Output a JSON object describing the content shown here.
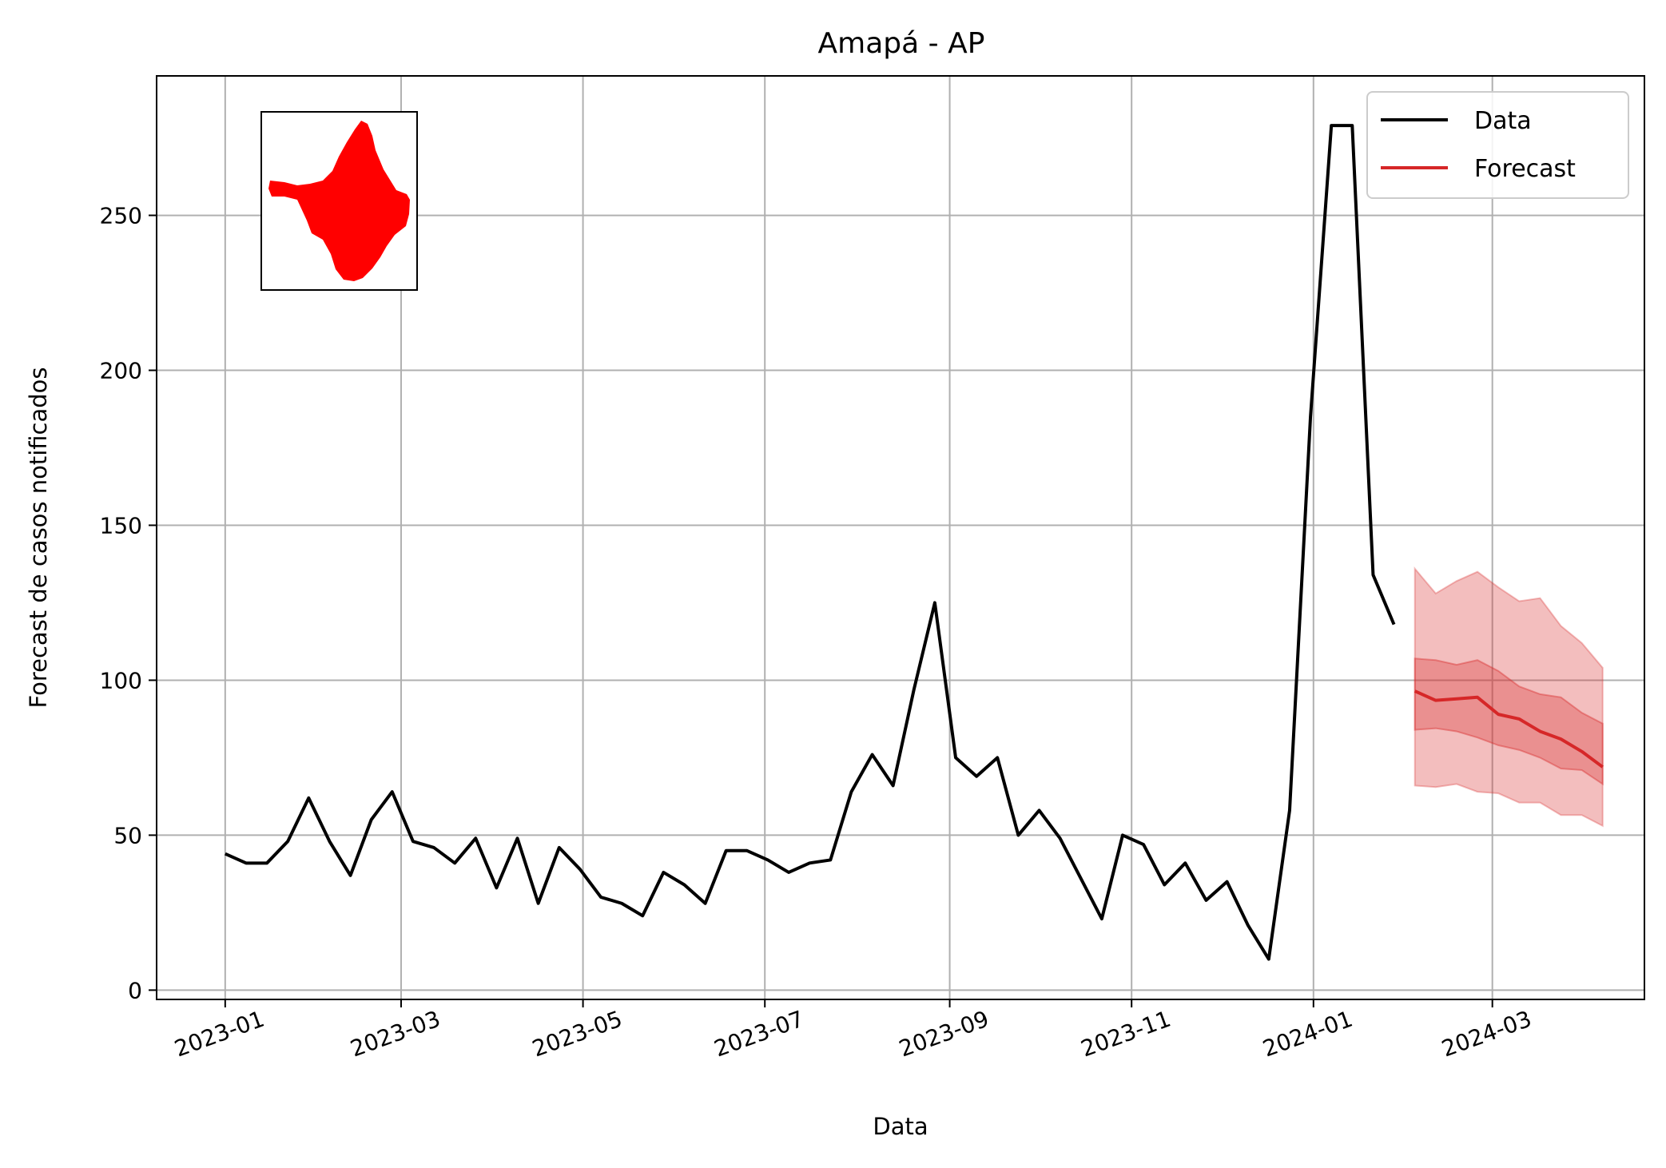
{
  "chart_data": {
    "type": "line",
    "title": "Amapá - AP",
    "xlabel": "Data",
    "ylabel": "Forecast de casos notificados",
    "x_range": [
      "2022-12-09",
      "2024-04-21"
    ],
    "ylim": [
      -3,
      295
    ],
    "grid": true,
    "legend_position": "top-right",
    "x_ticks": [
      "2023-01",
      "2023-03",
      "2023-05",
      "2023-07",
      "2023-09",
      "2023-11",
      "2024-01",
      "2024-03"
    ],
    "x_tick_dates": [
      "2023-01-01",
      "2023-03-01",
      "2023-05-01",
      "2023-07-01",
      "2023-09-01",
      "2023-11-01",
      "2024-01-01",
      "2024-03-01"
    ],
    "y_ticks": [
      0,
      50,
      100,
      150,
      200,
      250
    ],
    "series": [
      {
        "name": "Data",
        "color": "#000000",
        "dates": [
          "2023-01-01",
          "2023-01-08",
          "2023-01-15",
          "2023-01-22",
          "2023-01-29",
          "2023-02-05",
          "2023-02-12",
          "2023-02-19",
          "2023-02-26",
          "2023-03-05",
          "2023-03-12",
          "2023-03-19",
          "2023-03-26",
          "2023-04-02",
          "2023-04-09",
          "2023-04-16",
          "2023-04-23",
          "2023-04-30",
          "2023-05-07",
          "2023-05-14",
          "2023-05-21",
          "2023-05-28",
          "2023-06-04",
          "2023-06-11",
          "2023-06-18",
          "2023-06-25",
          "2023-07-02",
          "2023-07-09",
          "2023-07-16",
          "2023-07-23",
          "2023-07-30",
          "2023-08-06",
          "2023-08-13",
          "2023-08-20",
          "2023-08-27",
          "2023-09-03",
          "2023-09-10",
          "2023-09-17",
          "2023-09-24",
          "2023-10-01",
          "2023-10-08",
          "2023-10-15",
          "2023-10-22",
          "2023-10-29",
          "2023-11-05",
          "2023-11-12",
          "2023-11-19",
          "2023-11-26",
          "2023-12-03",
          "2023-12-10",
          "2023-12-17",
          "2023-12-24",
          "2023-12-31",
          "2024-01-07",
          "2024-01-14",
          "2024-01-21",
          "2024-01-28"
        ],
        "values": [
          44,
          41,
          41,
          48,
          62,
          48,
          37,
          55,
          64,
          48,
          46,
          41,
          49,
          33,
          49,
          28,
          46,
          39,
          30,
          28,
          24,
          38,
          34,
          28,
          45,
          45,
          42,
          38,
          41,
          42,
          64,
          76,
          66,
          97,
          125,
          75,
          69,
          75,
          50,
          58,
          49,
          36,
          23,
          50,
          47,
          34,
          41,
          29,
          35,
          21,
          10,
          58,
          185,
          279,
          279,
          134,
          118
        ]
      },
      {
        "name": "Forecast",
        "color": "#d62728",
        "dates": [
          "2024-02-04",
          "2024-02-11",
          "2024-02-18",
          "2024-02-25",
          "2024-03-03",
          "2024-03-10",
          "2024-03-17",
          "2024-03-24",
          "2024-03-31",
          "2024-04-07"
        ],
        "values": [
          96.5,
          93.5,
          94,
          94.5,
          89,
          87.5,
          83.5,
          81,
          77,
          72
        ],
        "band_50": {
          "lower": [
            84,
            84.5,
            83.5,
            81.5,
            79,
            77.5,
            75,
            71.5,
            71,
            66.5
          ],
          "upper": [
            107,
            106.5,
            105,
            106.5,
            103,
            98,
            95.5,
            94.5,
            89.5,
            86
          ]
        },
        "band_90": {
          "lower": [
            66,
            65.5,
            66.5,
            64,
            63.5,
            60.5,
            60.5,
            56.5,
            56.5,
            53
          ],
          "upper": [
            136,
            128,
            132,
            135,
            130,
            125.5,
            126.5,
            117.5,
            112,
            104
          ]
        }
      }
    ],
    "inset": {
      "description_icon": "amapa-state-map-icon",
      "fill_color": "#ff0000"
    }
  }
}
